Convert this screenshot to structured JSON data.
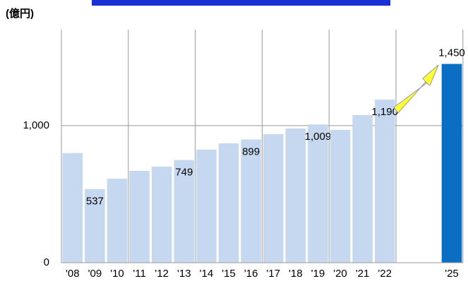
{
  "chart_data": {
    "type": "bar",
    "title": "(億円)",
    "categories": [
      "'08",
      "'09",
      "'10",
      "'11",
      "'12",
      "'13",
      "'14",
      "'15",
      "'16",
      "'17",
      "'18",
      "'19",
      "'20",
      "'21",
      "'22",
      null,
      null,
      "'25"
    ],
    "values": [
      800,
      537,
      613,
      670,
      701,
      749,
      825,
      871,
      899,
      938,
      979,
      1009,
      969,
      1077,
      1190,
      null,
      null,
      1450
    ],
    "value_labels": [
      null,
      "537",
      null,
      null,
      null,
      "749",
      null,
      null,
      "899",
      null,
      null,
      "1,009",
      null,
      null,
      "1,190",
      null,
      null,
      "1,450"
    ],
    "colors": [
      "#c6d8f0",
      "#c6d8f0",
      "#c6d8f0",
      "#c6d8f0",
      "#c6d8f0",
      "#c6d8f0",
      "#c6d8f0",
      "#c6d8f0",
      "#c6d8f0",
      "#c6d8f0",
      "#c6d8f0",
      "#c6d8f0",
      "#c6d8f0",
      "#c6d8f0",
      "#c6d8f0",
      null,
      null,
      "#0a6fc2"
    ],
    "ylim": [
      0,
      1700
    ],
    "yticks": [
      0,
      {
        "value": 1000,
        "label": "1,000"
      }
    ],
    "grid": true
  }
}
